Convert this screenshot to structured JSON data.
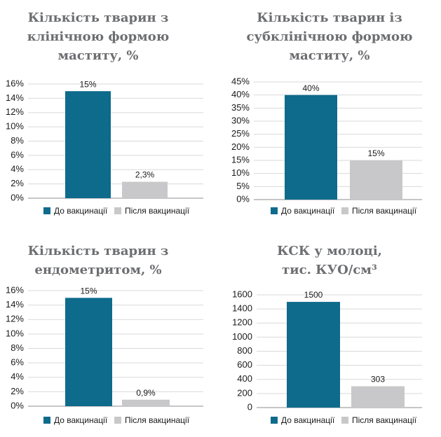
{
  "chart_data": [
    {
      "type": "bar",
      "title": "Кількість тварин з клінічною формою маститу, %",
      "series": [
        {
          "name": "До вакцинації",
          "color": "#0e6b8c",
          "values": [
            15
          ],
          "value_labels": [
            "15%"
          ]
        },
        {
          "name": "Після вакцинації",
          "color": "#c8c8ca",
          "values": [
            2.3
          ],
          "value_labels": [
            "2,3%"
          ]
        }
      ],
      "ylim": [
        0,
        16
      ],
      "yticks": [
        {
          "value": 0,
          "label": "0%"
        },
        {
          "value": 2,
          "label": "2%"
        },
        {
          "value": 4,
          "label": "4%"
        },
        {
          "value": 6,
          "label": "6%"
        },
        {
          "value": 8,
          "label": "8%"
        },
        {
          "value": 10,
          "label": "10%"
        },
        {
          "value": 12,
          "label": "12%"
        },
        {
          "value": 14,
          "label": "14%"
        },
        {
          "value": 16,
          "label": "16%"
        }
      ],
      "grid": true
    },
    {
      "type": "bar",
      "title": "Кількість тварин із субклінічною формою маститу, %",
      "series": [
        {
          "name": "До вакцинації",
          "color": "#0e6b8c",
          "values": [
            40
          ],
          "value_labels": [
            "40%"
          ]
        },
        {
          "name": "Після вакцинації",
          "color": "#c8c8ca",
          "values": [
            15
          ],
          "value_labels": [
            "15%"
          ]
        }
      ],
      "ylim": [
        0,
        45
      ],
      "yticks": [
        {
          "value": 0,
          "label": "0%"
        },
        {
          "value": 5,
          "label": "5%"
        },
        {
          "value": 10,
          "label": "10%"
        },
        {
          "value": 15,
          "label": "15%"
        },
        {
          "value": 20,
          "label": "20%"
        },
        {
          "value": 25,
          "label": "25%"
        },
        {
          "value": 30,
          "label": "30%"
        },
        {
          "value": 35,
          "label": "35%"
        },
        {
          "value": 40,
          "label": "40%"
        },
        {
          "value": 45,
          "label": "45%"
        }
      ],
      "grid": true
    },
    {
      "type": "bar",
      "title": "Кількість тварин з ендометритом, %",
      "series": [
        {
          "name": "До вакцинації",
          "color": "#0e6b8c",
          "values": [
            15
          ],
          "value_labels": [
            "15%"
          ]
        },
        {
          "name": "Після вакцинації",
          "color": "#c8c8ca",
          "values": [
            0.9
          ],
          "value_labels": [
            "0,9%"
          ]
        }
      ],
      "ylim": [
        0,
        16
      ],
      "yticks": [
        {
          "value": 0,
          "label": "0%"
        },
        {
          "value": 2,
          "label": "2%"
        },
        {
          "value": 4,
          "label": "4%"
        },
        {
          "value": 6,
          "label": "6%"
        },
        {
          "value": 8,
          "label": "8%"
        },
        {
          "value": 10,
          "label": "10%"
        },
        {
          "value": 12,
          "label": "12%"
        },
        {
          "value": 14,
          "label": "14%"
        },
        {
          "value": 16,
          "label": "16%"
        }
      ],
      "grid": true
    },
    {
      "type": "bar",
      "title": "КСК у молоці, тис. КУО/см³",
      "series": [
        {
          "name": "До вакцинації",
          "color": "#0e6b8c",
          "values": [
            1500
          ]
        },
        {
          "name": "Після вакцинації",
          "color": "#c8c8ca",
          "values": [
            303
          ]
        }
      ],
      "ylim": [
        0,
        1600
      ],
      "yticks": [
        0,
        200,
        400,
        600,
        800,
        1000,
        1200,
        1400,
        1600
      ],
      "grid": true
    }
  ]
}
